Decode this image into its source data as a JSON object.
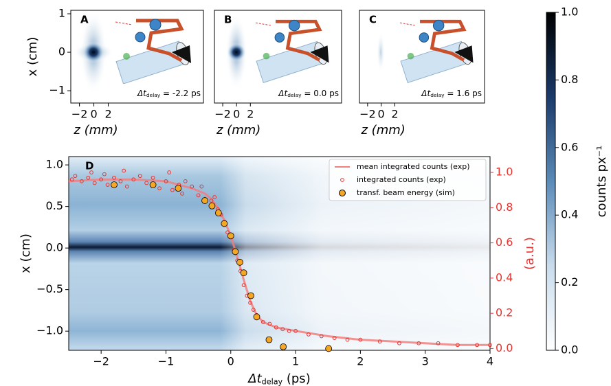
{
  "chart_data": [
    {
      "type": "image",
      "panel": "A",
      "annotation": {
        "symbol": "Δt",
        "subscript": "delay",
        "text": " = -2.2 ps"
      },
      "xlabel": "z (mm)",
      "ylabel": "x (cm)",
      "xlim": [
        -3.2,
        15.2
      ],
      "ylim": [
        -1.32,
        1.09
      ],
      "xticks": [
        {
          "value": -2,
          "label": "−2"
        },
        0,
        2
      ],
      "yticks": [
        {
          "value": -1,
          "label": "−1"
        },
        0,
        1
      ]
    },
    {
      "type": "image",
      "panel": "B",
      "annotation": {
        "symbol": "Δt",
        "subscript": "delay",
        "text": " = 0.0 ps"
      },
      "xlabel": "z (mm)",
      "xlim": [
        -3.2,
        15.2
      ],
      "xticks": [
        {
          "value": -2,
          "label": "−2"
        },
        0,
        2
      ]
    },
    {
      "type": "image",
      "panel": "C",
      "annotation": {
        "symbol": "Δt",
        "subscript": "delay",
        "text": " = 1.6 ps"
      },
      "xlabel": "z (mm)",
      "xlim": [
        -3.2,
        15.2
      ],
      "xticks": [
        {
          "value": -2,
          "label": "−2"
        },
        0,
        2
      ]
    },
    {
      "type": "combo",
      "panel": "D",
      "xlabel": {
        "symbol": "Δt",
        "subscript": "delay",
        "text": " (ps)"
      },
      "ylabel": "x (cm)",
      "y2label": "(a.u.)",
      "y2color": "#e8332e",
      "xlim": [
        -2.5,
        4
      ],
      "ylim": [
        -1.23,
        1.1
      ],
      "y2lim": [
        -0.01,
        1.09
      ],
      "xticks": [
        {
          "value": -2,
          "label": "−2"
        },
        {
          "value": -1,
          "label": "−1"
        },
        0,
        1,
        2,
        3,
        4
      ],
      "yticks": [
        {
          "value": -1,
          "label": "−1.0"
        },
        {
          "value": -0.5,
          "label": "−0.5"
        },
        {
          "value": 0,
          "label": "0.0"
        },
        0.5,
        {
          "value": 1,
          "label": "1.0"
        }
      ],
      "y2ticks": [
        {
          "value": 0,
          "label": "0.0"
        },
        0.2,
        0.4,
        0.6,
        0.8,
        {
          "value": 1,
          "label": "1.0"
        }
      ],
      "legend": "upper right",
      "series": [
        {
          "name": "mean integrated counts (exp)",
          "kind": "line",
          "axis": "y2",
          "color": "#f07f7f",
          "x": [
            -2.5,
            -2,
            -1.5,
            -1,
            -0.8,
            -0.6,
            -0.4,
            -0.3,
            -0.2,
            -0.1,
            0,
            0.1,
            0.2,
            0.3,
            0.4,
            0.5,
            0.7,
            1,
            1.5,
            2,
            2.5,
            3,
            3.5,
            4
          ],
          "values": [
            0.95,
            0.96,
            0.96,
            0.95,
            0.93,
            0.91,
            0.88,
            0.85,
            0.8,
            0.73,
            0.64,
            0.52,
            0.39,
            0.27,
            0.19,
            0.15,
            0.12,
            0.1,
            0.07,
            0.05,
            0.04,
            0.03,
            0.02,
            0.02
          ]
        },
        {
          "name": "integrated counts (exp)",
          "kind": "scatter",
          "marker": "hollow",
          "axis": "y2",
          "color": "#e8332e",
          "x": [
            -2.45,
            -2.4,
            -2.3,
            -2.2,
            -2.15,
            -2.1,
            -2.0,
            -1.95,
            -1.9,
            -1.8,
            -1.7,
            -1.65,
            -1.6,
            -1.5,
            -1.4,
            -1.3,
            -1.2,
            -1.1,
            -1.0,
            -0.95,
            -0.9,
            -0.8,
            -0.75,
            -0.7,
            -0.6,
            -0.5,
            -0.45,
            -0.4,
            -0.3,
            -0.25,
            -0.2,
            -0.15,
            -0.1,
            -0.05,
            0.0,
            0.05,
            0.1,
            0.15,
            0.2,
            0.25,
            0.3,
            0.35,
            0.4,
            0.5,
            0.6,
            0.7,
            0.8,
            0.9,
            1.0,
            1.2,
            1.4,
            1.6,
            1.8,
            2.0,
            2.3,
            2.6,
            2.9,
            3.2,
            3.5,
            3.8,
            4.0
          ],
          "values": [
            0.96,
            0.98,
            0.95,
            0.97,
            1.0,
            0.94,
            0.96,
            0.99,
            0.93,
            0.97,
            0.95,
            1.01,
            0.92,
            0.96,
            0.98,
            0.94,
            0.97,
            0.91,
            0.95,
            1.0,
            0.9,
            0.93,
            0.88,
            0.95,
            0.92,
            0.87,
            0.92,
            0.85,
            0.84,
            0.86,
            0.79,
            0.76,
            0.72,
            0.66,
            0.64,
            0.56,
            0.5,
            0.44,
            0.36,
            0.3,
            0.26,
            0.22,
            0.19,
            0.15,
            0.14,
            0.12,
            0.11,
            0.1,
            0.1,
            0.08,
            0.07,
            0.06,
            0.05,
            0.05,
            0.04,
            0.03,
            0.03,
            0.03,
            0.02,
            0.02,
            0.02
          ]
        },
        {
          "name": "transf. beam energy (sim)",
          "kind": "scatter",
          "marker": "filled",
          "edge": "#000000",
          "axis": "y2",
          "color": "#f5a623",
          "x": [
            -1.8,
            -1.2,
            -0.81,
            -0.4,
            -0.29,
            -0.19,
            -0.1,
            0.0,
            0.07,
            0.14,
            0.2,
            0.31,
            0.4,
            0.59,
            0.81,
            1.51
          ],
          "values": [
            0.93,
            0.93,
            0.91,
            0.84,
            0.81,
            0.77,
            0.71,
            0.64,
            0.55,
            0.49,
            0.43,
            0.3,
            0.18,
            0.05,
            0.01,
            0.0
          ]
        }
      ]
    },
    {
      "type": "colorbar",
      "label": "counts px⁻¹",
      "ylim": [
        0,
        1
      ],
      "yticks": [
        {
          "value": 0,
          "label": "0.0"
        },
        0.2,
        0.4,
        0.6,
        0.8,
        {
          "value": 1,
          "label": "1.0"
        }
      ],
      "colors": [
        "#ffffff",
        "#c9dcec",
        "#5b8bb8",
        "#1a3a6a",
        "#000000"
      ]
    }
  ]
}
